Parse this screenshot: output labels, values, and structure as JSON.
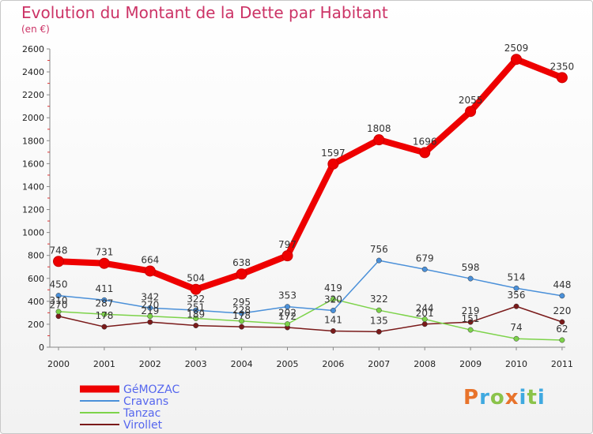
{
  "title": "Evolution du Montant de la Dette par Habitant",
  "subtitle": "(en €)",
  "logo": "Proxiti",
  "chart_data": {
    "type": "line",
    "title": "Evolution du Montant de la Dette par Habitant",
    "subtitle": "(en €)",
    "x": [
      "2000",
      "2001",
      "2002",
      "2003",
      "2004",
      "2005",
      "2006",
      "2007",
      "2008",
      "2009",
      "2010",
      "2011"
    ],
    "ylim": [
      0,
      2600
    ],
    "yticks": [
      0,
      200,
      400,
      600,
      800,
      1000,
      1200,
      1400,
      1600,
      1800,
      2000,
      2200,
      2400,
      2600
    ],
    "grid": false,
    "legend": "bottom-left",
    "series": [
      {
        "name": "GéMOZAC",
        "color": "#ee0000",
        "values": [
          748,
          731,
          664,
          504,
          638,
          797,
          1597,
          1808,
          1696,
          2055,
          2509,
          2350
        ]
      },
      {
        "name": "Cravans",
        "color": "#4a90d9",
        "values": [
          450,
          411,
          342,
          322,
          295,
          353,
          320,
          756,
          679,
          598,
          514,
          448
        ]
      },
      {
        "name": "Tanzac",
        "color": "#7dd34a",
        "values": [
          310,
          287,
          270,
          251,
          228,
          202,
          419,
          322,
          244,
          151,
          74,
          62
        ]
      },
      {
        "name": "Virollet",
        "color": "#7a1a1a",
        "values": [
          270,
          178,
          219,
          189,
          178,
          172,
          141,
          135,
          201,
          219,
          356,
          220
        ]
      }
    ]
  }
}
